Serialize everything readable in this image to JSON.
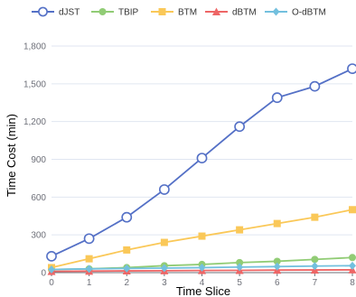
{
  "chart_data": {
    "type": "line",
    "xlabel": "Time Slice",
    "ylabel": "Time Cost (min)",
    "x": [
      0,
      1,
      2,
      3,
      4,
      5,
      6,
      7,
      8
    ],
    "x_ticks": [
      "0",
      "1",
      "2",
      "3",
      "4",
      "5",
      "6",
      "7",
      "8"
    ],
    "ylim": [
      0,
      1800
    ],
    "y_ticks": [
      0,
      300,
      600,
      900,
      1200,
      1500,
      1800
    ],
    "y_tick_labels": [
      "0",
      "300",
      "600",
      "900",
      "1,200",
      "1,500",
      "1,800"
    ],
    "grid": "horizontal",
    "legend_position": "top",
    "series": [
      {
        "name": "dJST",
        "color": "#5470c6",
        "marker": "hollow-circle",
        "values": [
          130,
          270,
          440,
          660,
          910,
          1160,
          1390,
          1480,
          1620
        ]
      },
      {
        "name": "TBIP",
        "color": "#91cc75",
        "marker": "circle",
        "values": [
          25,
          30,
          40,
          55,
          65,
          80,
          90,
          105,
          120
        ]
      },
      {
        "name": "BTM",
        "color": "#fac858",
        "marker": "square",
        "values": [
          40,
          110,
          180,
          240,
          290,
          340,
          390,
          440,
          500
        ]
      },
      {
        "name": "dBTM",
        "color": "#ee6666",
        "marker": "triangle",
        "values": [
          10,
          12,
          14,
          15,
          17,
          18,
          20,
          21,
          22
        ]
      },
      {
        "name": "O-dBTM",
        "color": "#73c0de",
        "marker": "diamond",
        "values": [
          25,
          30,
          33,
          36,
          40,
          44,
          48,
          52,
          55
        ]
      }
    ]
  }
}
